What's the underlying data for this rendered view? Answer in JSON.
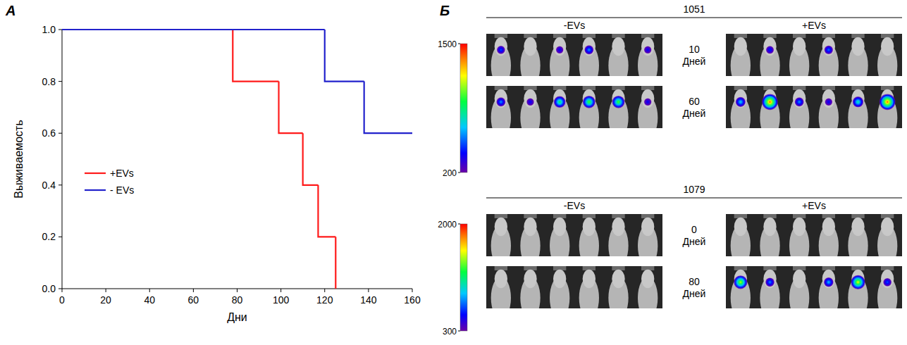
{
  "chart_data": [
    {
      "type": "line",
      "panel": "А",
      "x_label": "Дни",
      "y_label": "Выживаемость",
      "xlim": [
        0,
        160
      ],
      "ylim": [
        0,
        1
      ],
      "xticks": [
        0,
        20,
        40,
        60,
        80,
        100,
        120,
        140,
        160
      ],
      "yticks": [
        {
          "value": 0,
          "label": "0.0"
        },
        0.2,
        0.4,
        0.6,
        0.8,
        {
          "value": 1,
          "label": "1.0"
        }
      ],
      "line_style": "step",
      "legend": "center-left",
      "series": [
        {
          "name": "+EVs",
          "color": "#ff1a1a",
          "x": [
            0,
            78,
            99,
            110,
            117,
            125
          ],
          "values": [
            1,
            0.8,
            0.6,
            0.4,
            0.2,
            0
          ]
        },
        {
          "name": "- EVs",
          "color": "#2222cc",
          "x": [
            0,
            120,
            138,
            160
          ],
          "values": [
            1,
            0.8,
            0.6,
            0.6
          ]
        }
      ]
    },
    {
      "type": "image_grid",
      "panel": "Б",
      "groups": [
        {
          "title": "1051",
          "columns": [
            "-EVs",
            "+EVs"
          ],
          "color_range": [
            200,
            1500
          ],
          "color_ticks": [
            200,
            1500
          ],
          "rows": [
            {
              "days": 10,
              "days_label": "Дней",
              "values": [
                [
                  500,
                  null,
                  400,
                  600,
                  null,
                  400
                ],
                [
                  null,
                  450,
                  null,
                  550,
                  null,
                  null
                ]
              ]
            },
            {
              "days": 60,
              "days_label": "Дней",
              "values": [
                [
                  600,
                  400,
                  900,
                  1000,
                  1000,
                  400
                ],
                [
                  700,
                  1400,
                  600,
                  400,
                  800,
                  1400
                ]
              ]
            }
          ]
        },
        {
          "title": "1079",
          "columns": [
            "-EVs",
            "+EVs"
          ],
          "color_range": [
            300,
            2000
          ],
          "color_ticks": [
            300,
            2000
          ],
          "rows": [
            {
              "days": 0,
              "days_label": "Дней",
              "values": [
                [
                  null,
                  null,
                  null,
                  null,
                  null,
                  null
                ],
                [
                  null,
                  null,
                  null,
                  null,
                  null,
                  null
                ]
              ]
            },
            {
              "days": 80,
              "days_label": "Дней",
              "values": [
                [
                  null,
                  null,
                  null,
                  null,
                  null,
                  null
                ],
                [
                  1500,
                  800,
                  null,
                  900,
                  1600,
                  700
                ]
              ]
            }
          ]
        }
      ]
    }
  ]
}
